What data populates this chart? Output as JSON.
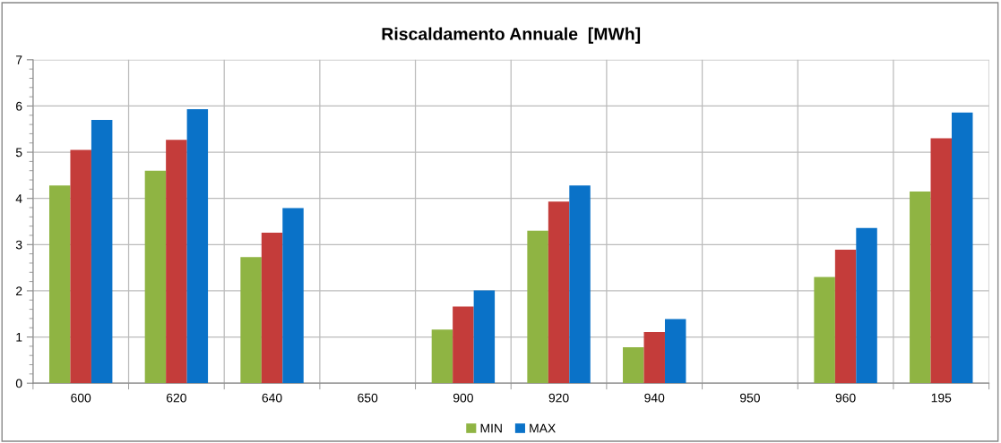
{
  "chart_data": {
    "type": "bar",
    "title": "Riscaldamento Annuale  [MWh]",
    "categories": [
      "600",
      "620",
      "640",
      "650",
      "900",
      "920",
      "940",
      "950",
      "960",
      "195"
    ],
    "series": [
      {
        "name": "MIN",
        "color": "#8fb443",
        "values": [
          4.28,
          4.6,
          2.73,
          null,
          1.16,
          3.3,
          0.78,
          null,
          2.3,
          4.15
        ]
      },
      {
        "color": "#c43c3a",
        "values": [
          5.05,
          5.27,
          3.26,
          null,
          1.66,
          3.93,
          1.11,
          null,
          2.89,
          5.3
        ]
      },
      {
        "name": "MAX",
        "color": "#0a72c8",
        "values": [
          5.7,
          5.93,
          3.79,
          null,
          2.01,
          4.28,
          1.39,
          null,
          3.36,
          5.86
        ]
      }
    ],
    "ylim": [
      0,
      7
    ],
    "yticks": [
      0,
      1,
      2,
      3,
      4,
      5,
      6,
      7
    ],
    "grid": true,
    "legend": "bottom"
  }
}
